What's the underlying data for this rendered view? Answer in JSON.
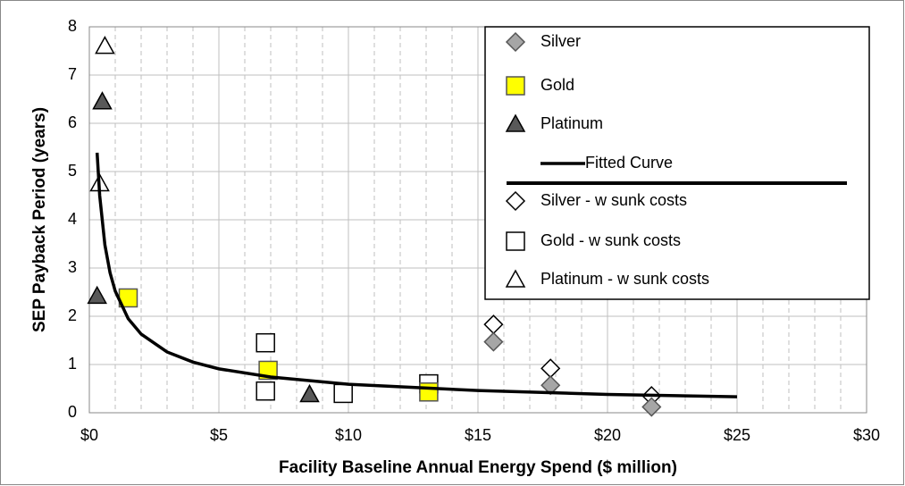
{
  "chart_data": {
    "type": "scatter",
    "xlabel": "Facility Baseline Annual Energy Spend ($ million)",
    "ylabel": "SEP Payback Period (years)",
    "xlim": [
      0,
      30
    ],
    "ylim": [
      0,
      8
    ],
    "xticks": [
      {
        "value": 0,
        "label": "$0"
      },
      {
        "value": 5,
        "label": "$5"
      },
      {
        "value": 10,
        "label": "$10"
      },
      {
        "value": 15,
        "label": "$15"
      },
      {
        "value": 20,
        "label": "$20"
      },
      {
        "value": 25,
        "label": "$25"
      },
      {
        "value": 30,
        "label": "$30"
      }
    ],
    "yticks": [
      0,
      1,
      2,
      3,
      4,
      5,
      6,
      7,
      8
    ],
    "grid": true,
    "minor_grid_step": 1,
    "legend": "upper right",
    "series": [
      {
        "name": "Silver",
        "marker": "diamond",
        "color": "#a6a6a6",
        "x": [
          15.6,
          17.8,
          21.7
        ],
        "values": [
          1.47,
          0.57,
          0.12
        ]
      },
      {
        "name": "Gold",
        "marker": "square",
        "color": "#ffff00",
        "x": [
          1.5,
          6.9,
          13.1
        ],
        "values": [
          2.38,
          0.88,
          0.43
        ]
      },
      {
        "name": "Platinum",
        "marker": "triangle",
        "color": "#595959",
        "x": [
          0.5,
          0.3,
          8.5
        ],
        "values": [
          6.45,
          2.42,
          0.38
        ]
      },
      {
        "name": "Fitted Curve",
        "marker": "line",
        "color": "#000000",
        "x": [
          0.3,
          0.4,
          0.6,
          0.8,
          1,
          1.5,
          2,
          3,
          4,
          5,
          7,
          10,
          15,
          20,
          25
        ],
        "values": [
          5.39,
          4.5,
          3.48,
          2.9,
          2.52,
          1.95,
          1.63,
          1.26,
          1.05,
          0.91,
          0.74,
          0.59,
          0.46,
          0.38,
          0.33
        ]
      },
      {
        "name": "Silver - w sunk costs",
        "marker": "diamond",
        "color": "#ffffff",
        "x": [
          15.6,
          17.8,
          21.7
        ],
        "values": [
          1.83,
          0.92,
          0.35
        ]
      },
      {
        "name": "Gold - w sunk costs",
        "marker": "square",
        "color": "#ffffff",
        "x": [
          6.8,
          6.8,
          9.8,
          13.1
        ],
        "values": [
          1.45,
          0.45,
          0.4,
          0.6
        ]
      },
      {
        "name": "Platinum - w sunk costs",
        "marker": "triangle",
        "color": "#ffffff",
        "x": [
          0.6,
          0.4
        ],
        "values": [
          7.6,
          4.75
        ]
      }
    ]
  }
}
